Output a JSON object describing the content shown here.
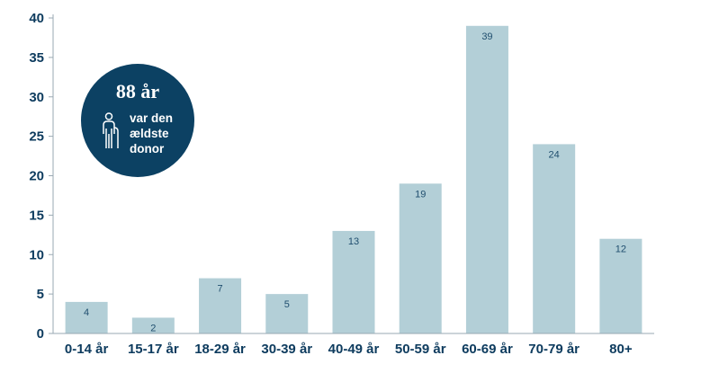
{
  "chart_data": {
    "type": "bar",
    "categories": [
      "0-14 år",
      "15-17 år",
      "18-29 år",
      "30-39 år",
      "40-49 år",
      "50-59 år",
      "60-69 år",
      "70-79 år",
      "80+"
    ],
    "values": [
      4,
      2,
      7,
      5,
      13,
      19,
      39,
      24,
      12
    ],
    "title": "",
    "xlabel": "",
    "ylabel": "",
    "ylim": [
      0,
      40
    ],
    "yticks": [
      0,
      5,
      10,
      15,
      20,
      25,
      30,
      35,
      40
    ],
    "grid": false,
    "legend": "none",
    "colors": {
      "bar": "#b3cfd7",
      "axis": "#9aa9b3",
      "text": "#0d3b5e",
      "data_label": "#1f4e6e"
    }
  },
  "badge": {
    "headline": "88 år",
    "lines": [
      "var den",
      "ældste",
      "donor"
    ],
    "icon": "elderly-person-with-cane-icon",
    "color": "#0c4163"
  }
}
